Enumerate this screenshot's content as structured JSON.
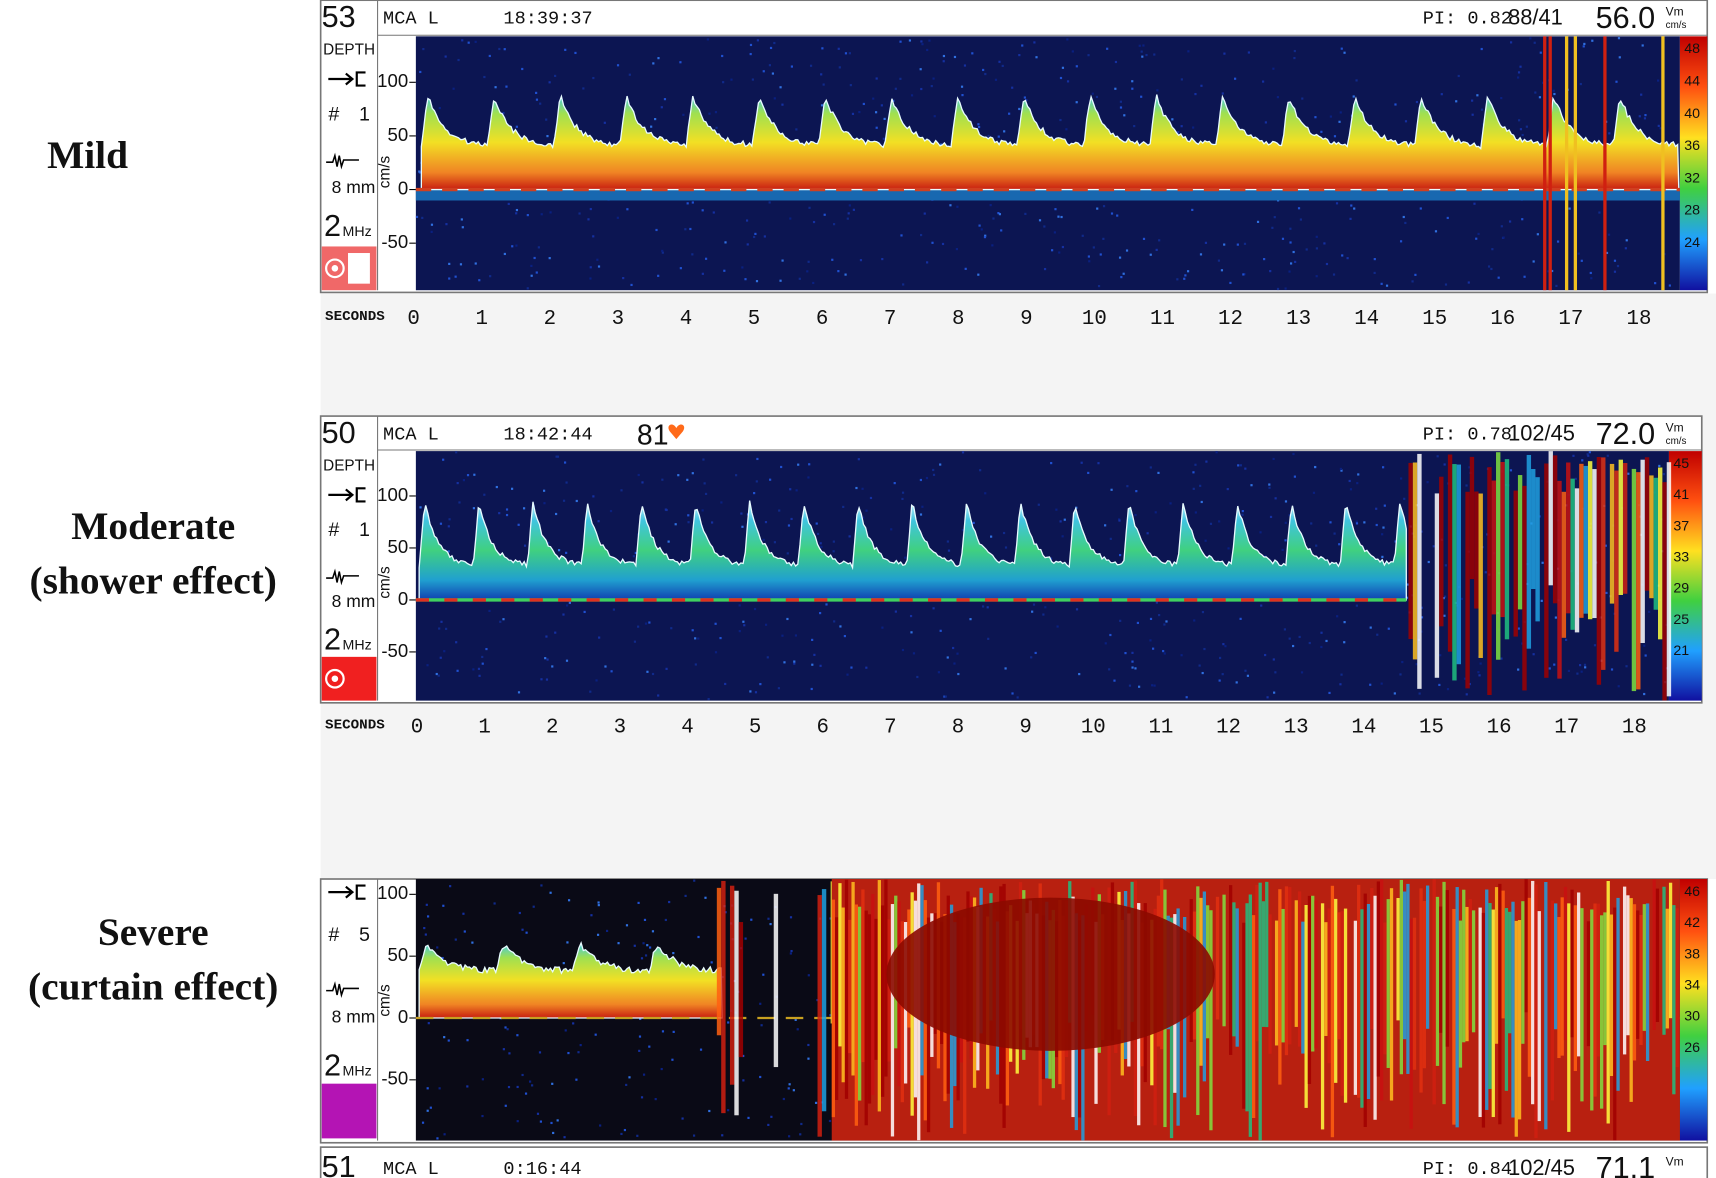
{
  "figure_labels": [
    [
      "Mild"
    ],
    [
      "Moderate",
      "(shower effect)"
    ],
    [
      "Severe",
      "(curtain effect)"
    ]
  ],
  "panels": [
    {
      "depth": "53",
      "depth_label": "DEPTH",
      "vessel": "MCA L",
      "time": "18:39:37",
      "pi": "PI: 0.82",
      "ratio": "88/41",
      "mean": "56.0",
      "mean_unit_top": "Vm",
      "mean_unit_bottom": "cm/s",
      "probe": "# 1",
      "gate": "8 mm",
      "freq": "2",
      "freq_unit": "MHz",
      "y_label": "cm/s",
      "y_ticks": [
        "100",
        "50",
        "0",
        "-50"
      ],
      "scale": [
        "48",
        "44",
        "40",
        "36",
        "32",
        "28",
        "24"
      ],
      "seconds_label": "SECONDS",
      "seconds": [
        "0",
        "1",
        "2",
        "3",
        "4",
        "5",
        "6",
        "7",
        "8",
        "9",
        "10",
        "11",
        "12",
        "13",
        "14",
        "15",
        "16",
        "17",
        "18"
      ]
    },
    {
      "depth": "50",
      "depth_label": "DEPTH",
      "vessel": "MCA L",
      "time": "18:42:44",
      "heart_rate": "81",
      "pi": "PI: 0.78",
      "ratio": "102/45",
      "mean": "72.0",
      "mean_unit_top": "Vm",
      "mean_unit_bottom": "cm/s",
      "probe": "# 1",
      "gate": "8 mm",
      "freq": "2",
      "freq_unit": "MHz",
      "y_label": "cm/s",
      "y_ticks": [
        "100",
        "50",
        "0",
        "-50"
      ],
      "scale": [
        "45",
        "41",
        "37",
        "33",
        "29",
        "25",
        "21"
      ],
      "seconds_label": "SECONDS",
      "seconds": [
        "0",
        "1",
        "2",
        "3",
        "4",
        "5",
        "6",
        "7",
        "8",
        "9",
        "10",
        "11",
        "12",
        "13",
        "14",
        "15",
        "16",
        "17",
        "18"
      ]
    },
    {
      "probe": "# 5",
      "gate": "8 mm",
      "freq": "2",
      "freq_unit": "MHz",
      "y_label": "cm/s",
      "y_ticks": [
        "100",
        "50",
        "0",
        "-50"
      ],
      "scale": [
        "46",
        "42",
        "38",
        "34",
        "30",
        "26"
      ]
    }
  ],
  "cutoff_header": {
    "depth": "51",
    "vessel": "MCA L",
    "time": "0:16:44",
    "pi": "PI: 0.84",
    "ratio": "102/45",
    "mean": "71.1",
    "mean_unit_top": "Vm"
  }
}
